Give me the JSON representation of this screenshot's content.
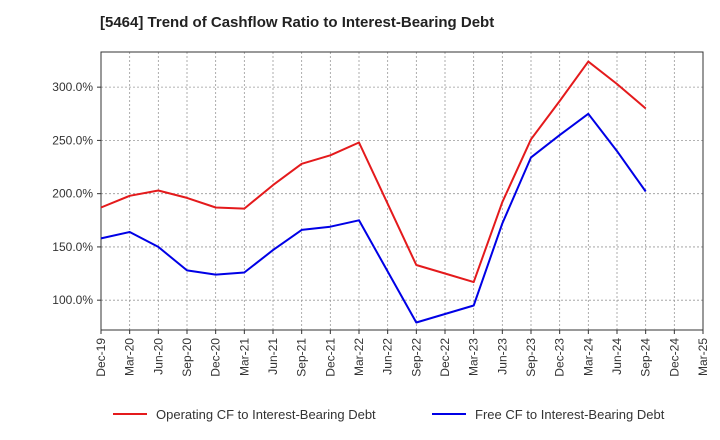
{
  "chart_data": {
    "type": "line",
    "title": "[5464]  Trend of Cashflow Ratio to Interest-Bearing Debt",
    "xlabel": "",
    "ylabel": "",
    "categories": [
      "Dec-19",
      "Mar-20",
      "Jun-20",
      "Sep-20",
      "Dec-20",
      "Mar-21",
      "Jun-21",
      "Sep-21",
      "Dec-21",
      "Mar-22",
      "Jun-22",
      "Sep-22",
      "Dec-22",
      "Mar-23",
      "Jun-23",
      "Sep-23",
      "Dec-23",
      "Mar-24",
      "Jun-24",
      "Sep-24",
      "Dec-24",
      "Mar-25"
    ],
    "ylim": [
      72,
      333
    ],
    "yticks": [
      100,
      150,
      200,
      250,
      300
    ],
    "ytick_labels": [
      "100.0%",
      "150.0%",
      "200.0%",
      "250.0%",
      "300.0%"
    ],
    "grid": true,
    "legend_position": "bottom",
    "series": [
      {
        "name": "Operating CF to Interest-Bearing Debt",
        "color": "#e41a1c",
        "values": [
          187,
          198,
          203,
          196,
          187,
          186,
          208,
          228,
          236,
          248,
          null,
          133,
          125,
          117,
          192,
          251,
          287,
          324,
          303,
          280,
          null,
          null
        ]
      },
      {
        "name": "Free CF to Interest-Bearing Debt",
        "color": "#0000e6",
        "values": [
          158,
          164,
          150,
          128,
          124,
          126,
          147,
          166,
          169,
          175,
          null,
          79,
          87,
          95,
          172,
          234,
          255,
          275,
          240,
          202,
          null,
          null
        ]
      }
    ]
  }
}
